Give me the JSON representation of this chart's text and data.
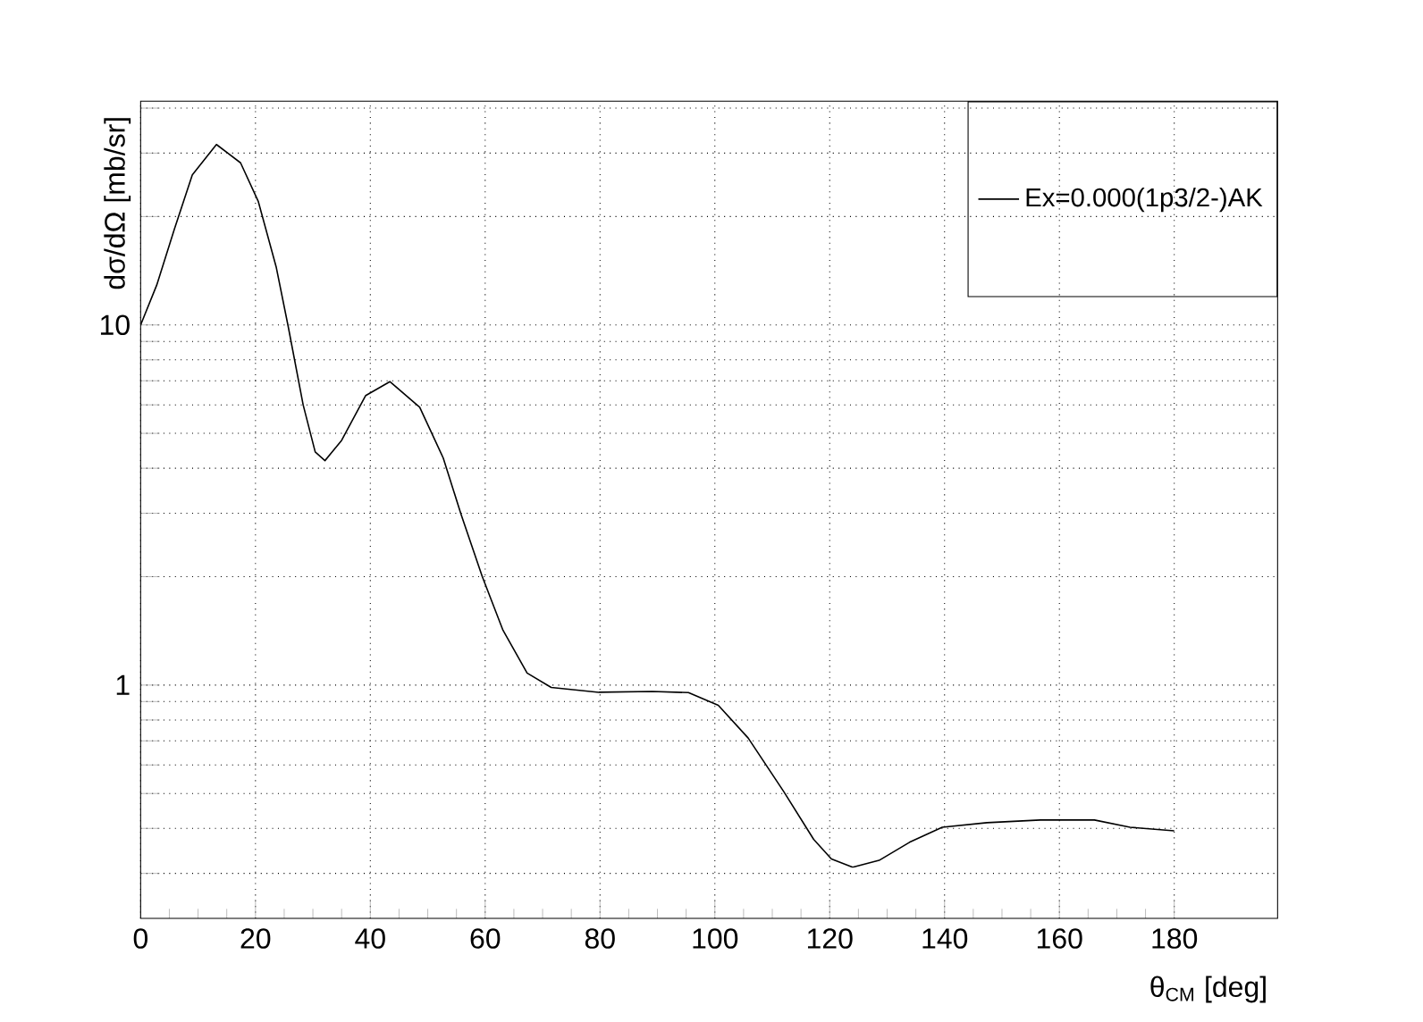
{
  "chart_data": {
    "type": "line",
    "xlabel": "θ$_{CM}$ [deg]",
    "ylabel": "dσ/dΩ [mb/sr]",
    "series": [
      {
        "name": "Ex=0.000(1p3/2-)AK",
        "color": "#000000",
        "x": [
          0,
          2.8,
          5.9,
          9.0,
          13.2,
          17.4,
          20.5,
          23.6,
          25.7,
          28.3,
          30.4,
          32.1,
          35.0,
          39.2,
          43.4,
          48.6,
          52.7,
          55.8,
          59.5,
          63.1,
          67.3,
          71.5,
          79.8,
          89.1,
          95.4,
          100.6,
          105.8,
          112,
          117.2,
          120.3,
          124.0,
          128.6,
          133.9,
          139.6,
          147.4,
          156.7,
          166.1,
          172.3,
          180
        ],
        "values": [
          10,
          12.9,
          18.5,
          26.1,
          31.7,
          28.2,
          22.0,
          14.5,
          9.9,
          6.0,
          4.44,
          4.2,
          4.78,
          6.37,
          6.96,
          5.91,
          4.27,
          2.98,
          2.0,
          1.42,
          1.08,
          0.985,
          0.955,
          0.96,
          0.953,
          0.879,
          0.713,
          0.506,
          0.373,
          0.329,
          0.312,
          0.326,
          0.366,
          0.403,
          0.415,
          0.422,
          0.422,
          0.403,
          0.394
        ]
      }
    ],
    "xlim": [
      0,
      198
    ],
    "ylim": [
      0.225,
      41.8
    ],
    "xticks": [
      0,
      20,
      40,
      60,
      80,
      100,
      120,
      140,
      160,
      180
    ],
    "yticks": [
      {
        "value": 0.3,
        "label": null
      },
      {
        "value": 0.4,
        "label": null
      },
      {
        "value": 0.5,
        "label": null
      },
      {
        "value": 0.6,
        "label": null
      },
      {
        "value": 0.7,
        "label": null
      },
      {
        "value": 0.8,
        "label": null
      },
      {
        "value": 0.9,
        "label": null
      },
      1,
      {
        "value": 2,
        "label": null
      },
      {
        "value": 3,
        "label": null
      },
      {
        "value": 4,
        "label": null
      },
      {
        "value": 5,
        "label": null
      },
      {
        "value": 6,
        "label": null
      },
      {
        "value": 7,
        "label": null
      },
      {
        "value": 8,
        "label": null
      },
      {
        "value": 9,
        "label": null
      },
      10,
      {
        "value": 20,
        "label": null
      },
      {
        "value": 30,
        "label": null
      },
      {
        "value": 40,
        "label": null
      }
    ],
    "log": "y",
    "grid": true,
    "legend": "top right"
  }
}
